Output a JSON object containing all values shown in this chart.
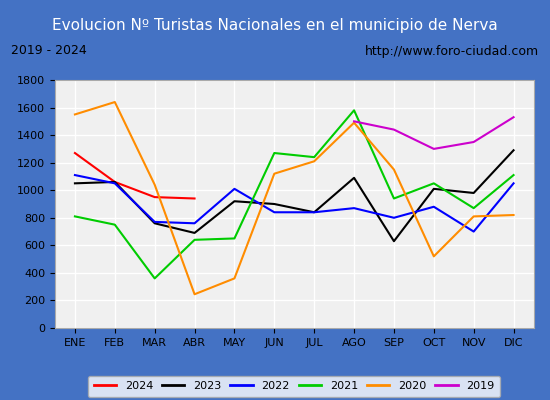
{
  "title": "Evolucion Nº Turistas Nacionales en el municipio de Nerva",
  "subtitle_left": "2019 - 2024",
  "subtitle_right": "http://www.foro-ciudad.com",
  "x_labels": [
    "ENE",
    "FEB",
    "MAR",
    "ABR",
    "MAY",
    "JUN",
    "JUL",
    "AGO",
    "SEP",
    "OCT",
    "NOV",
    "DIC"
  ],
  "ylim": [
    0,
    1800
  ],
  "yticks": [
    0,
    200,
    400,
    600,
    800,
    1000,
    1200,
    1400,
    1600,
    1800
  ],
  "series": {
    "2024": {
      "color": "#ff0000",
      "data": [
        1270,
        1060,
        950,
        940,
        null,
        null,
        null,
        null,
        null,
        null,
        null,
        null
      ]
    },
    "2023": {
      "color": "#000000",
      "data": [
        1050,
        1060,
        760,
        690,
        920,
        900,
        840,
        1090,
        630,
        1010,
        980,
        1290
      ]
    },
    "2022": {
      "color": "#0000ff",
      "data": [
        1110,
        1050,
        770,
        760,
        1010,
        840,
        840,
        870,
        800,
        880,
        700,
        1050
      ]
    },
    "2021": {
      "color": "#00cc00",
      "data": [
        810,
        750,
        360,
        640,
        650,
        1270,
        1240,
        1580,
        940,
        1050,
        870,
        1110
      ]
    },
    "2020": {
      "color": "#ff8c00",
      "data": [
        1550,
        1640,
        1040,
        245,
        360,
        1120,
        1210,
        1490,
        1150,
        520,
        810,
        820
      ]
    },
    "2019": {
      "color": "#cc00cc",
      "data": [
        null,
        null,
        null,
        null,
        null,
        null,
        null,
        1500,
        1440,
        1300,
        1350,
        1530
      ]
    }
  },
  "title_bg_color": "#4472c4",
  "title_fg_color": "#ffffff",
  "plot_bg_color": "#f0f0f0",
  "grid_color": "#ffffff",
  "border_color": "#4472c4",
  "subtitle_bg_color": "#e8e8e8"
}
